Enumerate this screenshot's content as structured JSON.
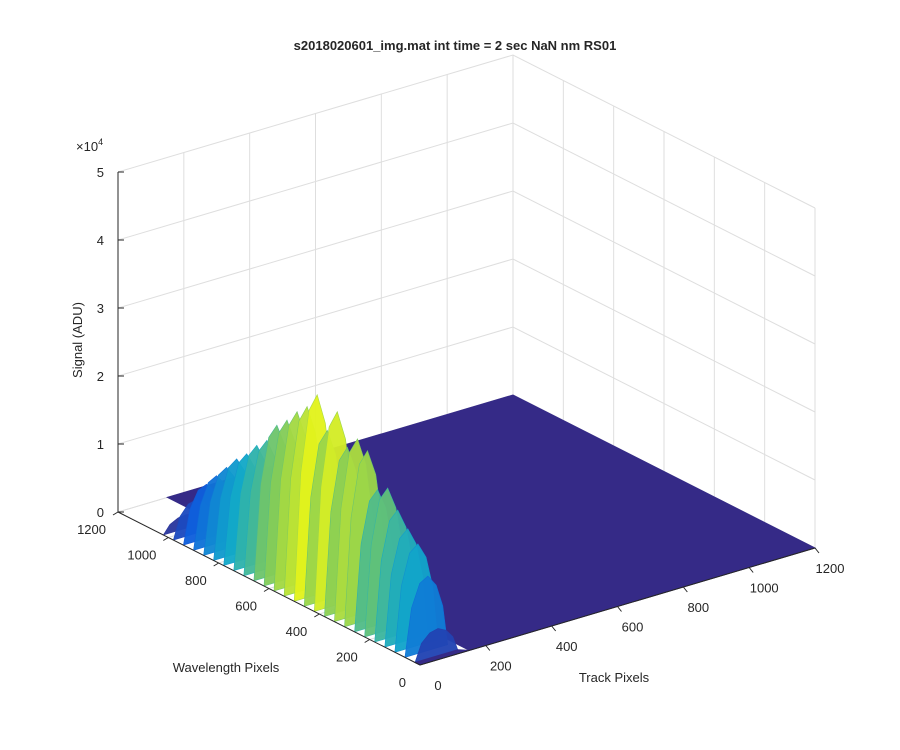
{
  "chart_data": {
    "type": "surface",
    "title": "s2018020601_img.mat int time = 2 sec  NaN nm RS01",
    "xlabel": "Track Pixels",
    "ylabel": "Wavelength Pixels",
    "zlabel": "Signal (ADU)",
    "z_exponent_label": "×10",
    "z_exponent_power": "4",
    "xlim": [
      0,
      1200
    ],
    "ylim": [
      0,
      1200
    ],
    "zlim": [
      0,
      50000
    ],
    "x_ticks": [
      "200",
      "400",
      "600",
      "800",
      "1000",
      "1200"
    ],
    "x_tick_zero": "0",
    "y_ticks": [
      "200",
      "400",
      "600",
      "800",
      "1000",
      "1200"
    ],
    "y_tick_zero": "0",
    "z_ticks": [
      "0",
      "1",
      "2",
      "3",
      "4",
      "5"
    ],
    "z_tick_values": [
      0,
      10000,
      20000,
      30000,
      40000,
      50000
    ],
    "grid": true,
    "colormap": "parula",
    "colors": {
      "base": "#352a87",
      "low": "#0f5cdd",
      "mid": "#12a9c9",
      "high": "#7fca5b",
      "peak": "#f9fb0e"
    },
    "signal_region": {
      "track_pixels": [
        0,
        130
      ],
      "wavelength_pixels": [
        20,
        1020
      ]
    },
    "peak_signal": 30000,
    "background_signal": 0,
    "profile_along_wavelength": [
      [
        20,
        4000
      ],
      [
        60,
        11000
      ],
      [
        100,
        15000
      ],
      [
        140,
        16500
      ],
      [
        180,
        18500
      ],
      [
        220,
        21000
      ],
      [
        260,
        20000
      ],
      [
        300,
        25000
      ],
      [
        340,
        26000
      ],
      [
        380,
        24000
      ],
      [
        420,
        28500
      ],
      [
        460,
        25000
      ],
      [
        500,
        29500
      ],
      [
        540,
        27000
      ],
      [
        580,
        25500
      ],
      [
        620,
        23500
      ],
      [
        660,
        22000
      ],
      [
        700,
        19000
      ],
      [
        740,
        17500
      ],
      [
        780,
        15500
      ],
      [
        820,
        14000
      ],
      [
        860,
        12000
      ],
      [
        900,
        10000
      ],
      [
        940,
        8000
      ],
      [
        980,
        5000
      ],
      [
        1020,
        2000
      ]
    ]
  }
}
